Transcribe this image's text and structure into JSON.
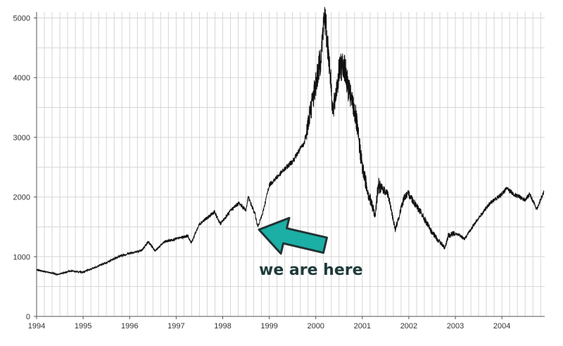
{
  "chart_data": {
    "type": "line",
    "title": "",
    "xlabel": "",
    "ylabel": "",
    "xlim": [
      1994,
      2004.92
    ],
    "ylim": [
      0,
      5100
    ],
    "grid": true,
    "x_ticks": [
      "1994",
      "1995",
      "1996",
      "1997",
      "1998",
      "1999",
      "2000",
      "2001",
      "2002",
      "2003",
      "2004"
    ],
    "y_ticks": [
      "0",
      "1000",
      "2000",
      "3000",
      "4000",
      "5000"
    ],
    "series": [
      {
        "line_color": "#111111",
        "x": [
          1994.0,
          1994.2,
          1994.45,
          1994.7,
          1995.0,
          1995.25,
          1995.5,
          1995.75,
          1996.0,
          1996.25,
          1996.4,
          1996.55,
          1996.75,
          1997.0,
          1997.25,
          1997.32,
          1997.5,
          1997.75,
          1997.82,
          1997.95,
          1998.0,
          1998.2,
          1998.35,
          1998.5,
          1998.55,
          1998.7,
          1998.75,
          1998.85,
          1999.0,
          1999.25,
          1999.5,
          1999.75,
          2000.0,
          2000.1,
          2000.19,
          2000.3,
          2000.37,
          2000.5,
          2000.6,
          2000.7,
          2000.85,
          2001.0,
          2001.15,
          2001.27,
          2001.35,
          2001.55,
          2001.71,
          2001.9,
          2002.0,
          2002.25,
          2002.5,
          2002.77,
          2002.85,
          2003.0,
          2003.2,
          2003.5,
          2003.75,
          2004.0,
          2004.1,
          2004.25,
          2004.5,
          2004.6,
          2004.75,
          2004.9
        ],
        "y": [
          780,
          750,
          700,
          760,
          740,
          820,
          900,
          1000,
          1060,
          1100,
          1250,
          1100,
          1250,
          1300,
          1350,
          1230,
          1550,
          1700,
          1750,
          1550,
          1600,
          1800,
          1900,
          1780,
          2000,
          1700,
          1500,
          1700,
          2200,
          2400,
          2600,
          2900,
          3900,
          4300,
          5050,
          4200,
          3400,
          4100,
          4250,
          3800,
          3400,
          2500,
          2000,
          1700,
          2200,
          2050,
          1450,
          2000,
          2050,
          1750,
          1400,
          1150,
          1350,
          1400,
          1300,
          1650,
          1900,
          2050,
          2150,
          2050,
          1950,
          2050,
          1800,
          2080
        ]
      }
    ],
    "annotations": [
      {
        "text": "we are here",
        "points_to": {
          "x": 1998.78,
          "y": 1500
        },
        "arrow_color": "#1bafa6",
        "arrow_outline": "#223333"
      }
    ]
  }
}
